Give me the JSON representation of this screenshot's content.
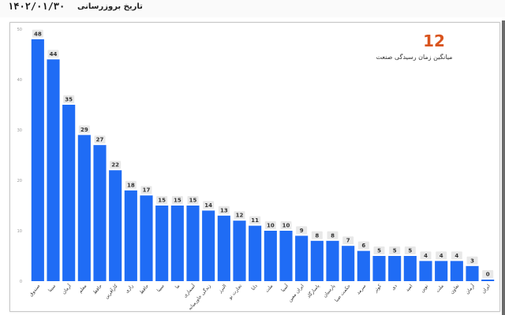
{
  "header": {
    "update_label": "تاریخ بروزرسانی",
    "update_date": "۱۴۰۲/۰۱/۳۰"
  },
  "kpi": {
    "value": "12",
    "label": "میانگین زمان رسیدگی صنعت"
  },
  "colors": {
    "bar": "#1f6cf5",
    "label_box": "#e8e8e8",
    "kpi": "#d9541e"
  },
  "chart_data": {
    "type": "bar",
    "title": "",
    "xlabel": "",
    "ylabel": "",
    "ylim": [
      0,
      50
    ],
    "yticks": [
      "0",
      "10",
      "20",
      "30",
      "40",
      "50"
    ],
    "grid": false,
    "categories": [
      "صندوق",
      "سینا",
      "آرمان",
      "معلم",
      "حافظ",
      "کارآفرین",
      "رازی",
      "حافظ",
      "سینا",
      "ما",
      "آسماری",
      "زندگی خاورمیانه",
      "البرز",
      "تجارت نو",
      "دانا",
      "ملت",
      "آسیا",
      "ایران معین",
      "پاسارگاد",
      "پارسیان",
      "حکمت صبا",
      "سرمد",
      "کوثر",
      "دی",
      "امید",
      "نوین",
      "ملت",
      "تعاون",
      "آرمان",
      "ایران"
    ],
    "values": [
      48,
      44,
      35,
      29,
      27,
      22,
      18,
      17,
      15,
      15,
      15,
      14,
      13,
      12,
      11,
      10,
      10,
      9,
      8,
      8,
      7,
      6,
      5,
      5,
      5,
      4,
      4,
      4,
      3,
      0
    ]
  }
}
